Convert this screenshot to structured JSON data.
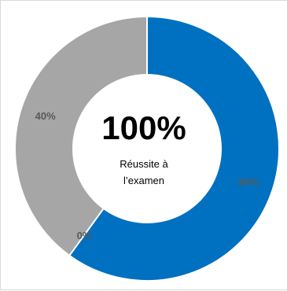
{
  "chart_data": {
    "type": "pie",
    "variant": "donut",
    "center_value": "100%",
    "center_caption_lines": [
      "Réussite à",
      "l’examen"
    ],
    "slices": [
      {
        "value": 60,
        "label": "60%",
        "color": "#0070c0"
      },
      {
        "value": 0,
        "label": "0%",
        "color": "#ffc000"
      },
      {
        "value": 40,
        "label": "40%",
        "color": "#a6a6a6"
      }
    ],
    "label_color": "#595959"
  }
}
